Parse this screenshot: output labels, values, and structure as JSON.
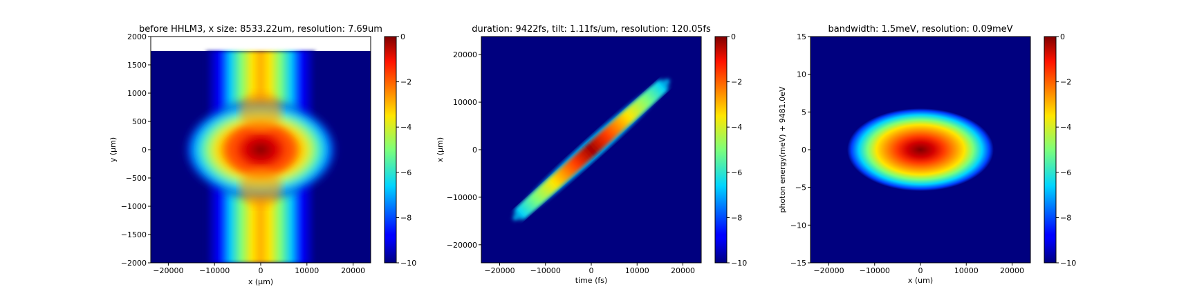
{
  "chart_data": [
    {
      "type": "heatmap",
      "title": "before HHLM3, x size: 8533.22um, resolution: 7.69um",
      "xlabel": "x (μm)",
      "ylabel": "y (μm)",
      "xlim": [
        -23800,
        23800
      ],
      "ylim": [
        -2000,
        2000
      ],
      "xticks": [
        -20000,
        -10000,
        0,
        10000,
        20000
      ],
      "yticks": [
        -2000,
        -1500,
        -1000,
        -500,
        0,
        500,
        1000,
        1500,
        2000
      ],
      "data_ylim": [
        -2000,
        1740
      ],
      "colorbar": {
        "range": [
          -10,
          0
        ],
        "ticks": [
          0,
          -2,
          -4,
          -6,
          -8,
          -10
        ]
      },
      "description_values": {
        "core_peak_x": 0,
        "core_peak_y": 0
      }
    },
    {
      "type": "heatmap",
      "title": "duration: 9422fs, tilt: 1.11fs/um, resolution: 120.05fs",
      "xlabel": "time (fs)",
      "ylabel": "x (μm)",
      "xlim": [
        -24000,
        24000
      ],
      "ylim": [
        -23800,
        23800
      ],
      "xticks": [
        -20000,
        -10000,
        0,
        10000,
        20000
      ],
      "yticks": [
        -20000,
        -10000,
        0,
        10000,
        20000
      ],
      "colorbar": {
        "range": [
          -10,
          0
        ],
        "ticks": [
          0,
          -2,
          -4,
          -6,
          -8,
          -10
        ]
      },
      "description_values": {
        "tilt_line": [
          [
            -17000,
            -16000
          ],
          [
            17000,
            16000
          ]
        ]
      }
    },
    {
      "type": "heatmap",
      "title": "bandwidth: 1.5meV, resolution: 0.09meV",
      "xlabel": "x (um)",
      "ylabel": "photon energy(meV) + 9481.0eV",
      "xlim": [
        -24000,
        24000
      ],
      "ylim": [
        -15,
        15
      ],
      "xticks": [
        -20000,
        -10000,
        0,
        10000,
        20000
      ],
      "yticks": [
        -15,
        -10,
        -5,
        0,
        5,
        10,
        15
      ],
      "colorbar": {
        "range": [
          -10,
          0
        ],
        "ticks": [
          0,
          -2,
          -4,
          -6,
          -8,
          -10
        ]
      },
      "description_values": {
        "center": [
          0,
          0
        ]
      }
    }
  ]
}
